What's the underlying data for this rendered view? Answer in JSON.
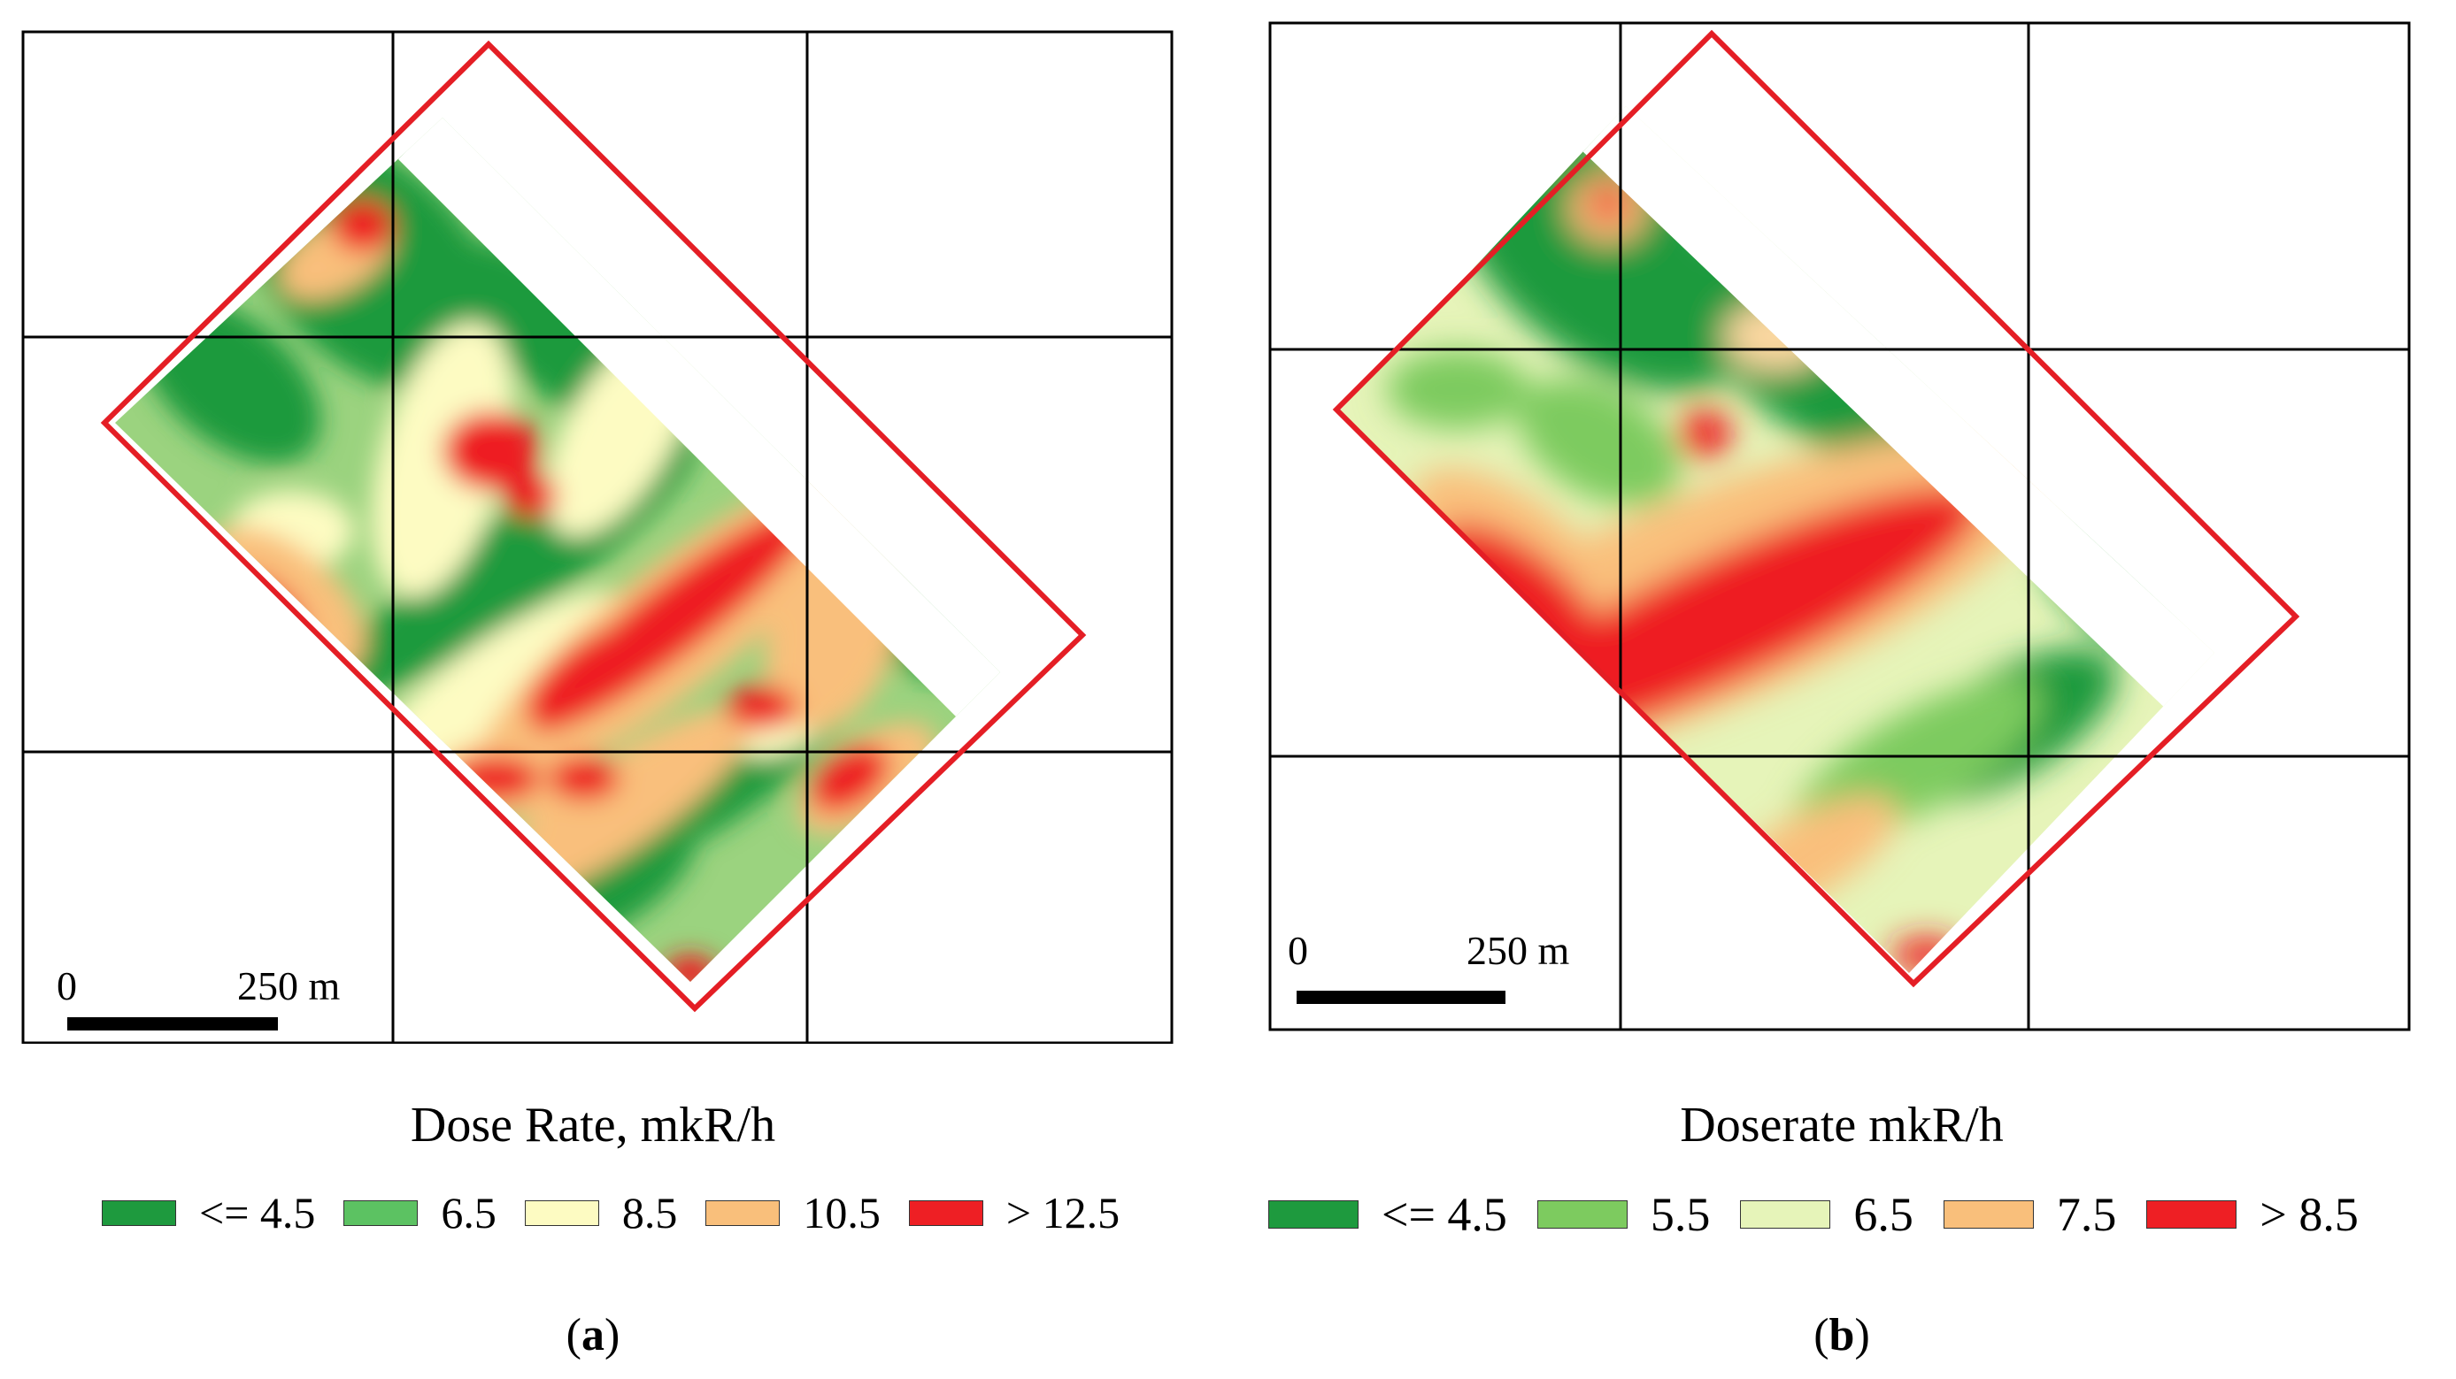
{
  "panel_a": {
    "caption_letter": "a",
    "legend_title": "Dose Rate, mkR/h",
    "scale": {
      "zero": "0",
      "distance": "250 m"
    },
    "legend": [
      {
        "label": "<= 4.5",
        "color": "#1e9a3e"
      },
      {
        "label": "6.5",
        "color": "#5cc262"
      },
      {
        "label": "8.5",
        "color": "#fdfbc2"
      },
      {
        "label": "10.5",
        "color": "#f9bf7b"
      },
      {
        "label": "> 12.5",
        "color": "#ee1f24"
      }
    ]
  },
  "panel_b": {
    "caption_letter": "b",
    "legend_title": "Doserate mkR/h",
    "scale": {
      "zero": "0",
      "distance": "250 m"
    },
    "legend": [
      {
        "label": "<= 4.5",
        "color": "#1e9a3e"
      },
      {
        "label": "5.5",
        "color": "#7dcb5f"
      },
      {
        "label": "6.5",
        "color": "#e6f4b9"
      },
      {
        "label": "7.5",
        "color": "#f9bf7b"
      },
      {
        "label": "> 8.5",
        "color": "#ee1f24"
      }
    ]
  },
  "colors": {
    "boundary": "#e41e25",
    "grid": "#000000"
  }
}
